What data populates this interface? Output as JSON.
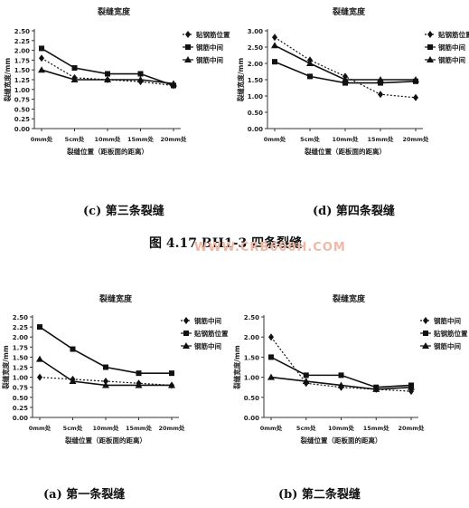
{
  "figure_caption": "图 4.17   BH1-3 四条裂缝",
  "watermark": "WWW.CRB600H.COM",
  "captions": {
    "c": "(c)   第三条裂缝",
    "d": "(d)   第四条裂缝",
    "a": "(a)   第一条裂缝",
    "b": "(b)   第二条裂缝"
  },
  "chart_data": [
    {
      "id": "c",
      "type": "line",
      "title": "裂缝宽度",
      "xlabel": "裂缝位置（距板面的距离）",
      "ylabel": "裂缝宽度/mm",
      "categories": [
        "0mm处",
        "5cm处",
        "10mm处",
        "15mm处",
        "20mm处"
      ],
      "yticks": [
        "0.00",
        "0.25",
        "0.50",
        "0.75",
        "1.00",
        "1.25",
        "1.50",
        "1.75",
        "2.00",
        "2.25",
        "2.50"
      ],
      "ylim": [
        0,
        2.5
      ],
      "legend_position": "right",
      "series": [
        {
          "name": "贴钢筋位置",
          "style": "dotted",
          "marker": "diamond",
          "values": [
            1.8,
            1.3,
            1.25,
            1.2,
            1.1
          ]
        },
        {
          "name": "钢筋中间",
          "style": "solid",
          "marker": "square",
          "values": [
            2.05,
            1.55,
            1.4,
            1.4,
            1.1
          ]
        },
        {
          "name": "钢筋中间",
          "style": "solid",
          "marker": "triangle",
          "values": [
            1.5,
            1.25,
            1.25,
            1.25,
            1.15
          ]
        }
      ]
    },
    {
      "id": "d",
      "type": "line",
      "title": "裂缝宽度",
      "xlabel": "裂缝位置（距板面的距离）",
      "ylabel": "裂缝宽度/mm",
      "categories": [
        "0mm处",
        "5cm处",
        "10mm处",
        "15mm处",
        "20mm处"
      ],
      "yticks": [
        "0.00",
        "0.50",
        "1.00",
        "1.50",
        "2.00",
        "2.50",
        "3.00"
      ],
      "ylim": [
        0,
        3.0
      ],
      "legend_position": "right",
      "series": [
        {
          "name": "贴钢筋位置",
          "style": "dotted",
          "marker": "diamond",
          "values": [
            2.8,
            2.1,
            1.6,
            1.05,
            0.95
          ]
        },
        {
          "name": "钢筋中间",
          "style": "solid",
          "marker": "square",
          "values": [
            2.05,
            1.6,
            1.4,
            1.4,
            1.45
          ]
        },
        {
          "name": "钢筋中间",
          "style": "solid",
          "marker": "triangle",
          "values": [
            2.55,
            2.0,
            1.5,
            1.5,
            1.5
          ]
        }
      ]
    },
    {
      "id": "a",
      "type": "line",
      "title": "裂缝宽度",
      "xlabel": "裂缝位置（距板面的距离）",
      "ylabel": "裂缝宽度/mm",
      "categories": [
        "0mm处",
        "5cm处",
        "10mm处",
        "15mm处",
        "20mm处"
      ],
      "yticks": [
        "0.00",
        "0.25",
        "0.50",
        "0.75",
        "1.00",
        "1.25",
        "1.50",
        "1.75",
        "2.00",
        "2.25",
        "2.50"
      ],
      "ylim": [
        0,
        2.5
      ],
      "legend_position": "right",
      "series": [
        {
          "name": "钢筋中间",
          "style": "dotted",
          "marker": "diamond",
          "values": [
            1.0,
            0.95,
            0.9,
            0.85,
            0.8
          ]
        },
        {
          "name": "贴钢筋位置",
          "style": "solid",
          "marker": "square",
          "values": [
            2.25,
            1.7,
            1.25,
            1.1,
            1.1
          ]
        },
        {
          "name": "钢筋中间",
          "style": "solid",
          "marker": "triangle",
          "values": [
            1.45,
            0.9,
            0.8,
            0.8,
            0.8
          ]
        }
      ]
    },
    {
      "id": "b",
      "type": "line",
      "title": "裂缝宽度",
      "xlabel": "裂缝位置（距板面的距离）",
      "ylabel": "裂缝宽度/mm",
      "categories": [
        "0mm处",
        "5cm处",
        "10mm处",
        "15mm处",
        "20mm处"
      ],
      "yticks": [
        "0.00",
        "0.50",
        "1.00",
        "1.50",
        "2.00",
        "2.50"
      ],
      "ylim": [
        0,
        2.5
      ],
      "legend_position": "right",
      "series": [
        {
          "name": "钢筋中间",
          "style": "dotted",
          "marker": "diamond",
          "values": [
            2.0,
            0.85,
            0.75,
            0.7,
            0.65
          ]
        },
        {
          "name": "贴钢筋位置",
          "style": "solid",
          "marker": "square",
          "values": [
            1.5,
            1.05,
            1.05,
            0.75,
            0.8
          ]
        },
        {
          "name": "钢筋中间",
          "style": "solid",
          "marker": "triangle",
          "values": [
            1.0,
            0.9,
            0.8,
            0.7,
            0.75
          ]
        }
      ]
    }
  ]
}
